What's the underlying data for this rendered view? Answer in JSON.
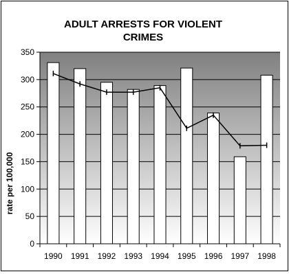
{
  "chart_data": {
    "type": "bar",
    "title": "ADULT ARRESTS FOR VIOLENT CRIMES",
    "title_lines": [
      "ADULT ARRESTS FOR VIOLENT",
      "CRIMES"
    ],
    "xlabel": "",
    "ylabel": "rate per 100,000",
    "categories": [
      "1990",
      "1991",
      "1992",
      "1993",
      "1994",
      "1995",
      "1996",
      "1997",
      "1998"
    ],
    "series": [
      {
        "type": "bar",
        "values": [
          331,
          320,
          295,
          282,
          289,
          321,
          239,
          159,
          308
        ]
      },
      {
        "type": "line",
        "values": [
          311,
          292,
          277,
          277,
          285,
          211,
          235,
          179,
          180
        ]
      }
    ],
    "ylim": [
      0,
      350
    ],
    "yticks": [
      0,
      50,
      100,
      150,
      200,
      250,
      300,
      350
    ],
    "grid": true,
    "legend": "none",
    "colors": {
      "bar_fill": "#ffffff",
      "bar_stroke": "#000000",
      "line": "#000000",
      "plot_bg_top": "#808080",
      "plot_bg_bottom": "#ffffff"
    }
  }
}
